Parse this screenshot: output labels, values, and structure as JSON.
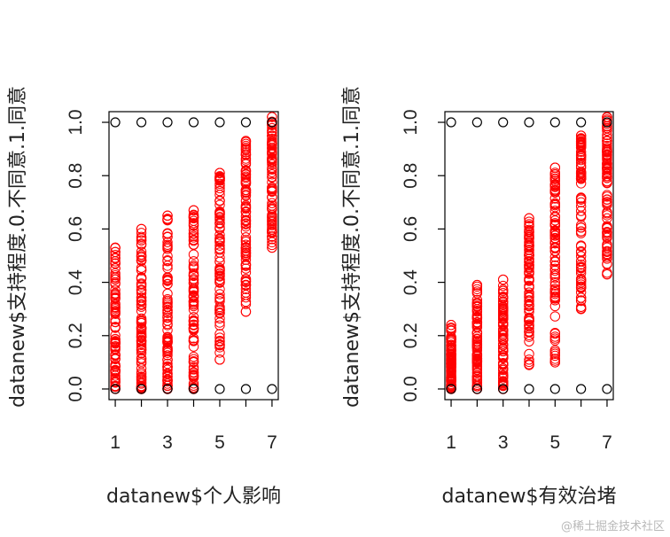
{
  "chart_data": [
    {
      "type": "scatter",
      "xlabel": "datanew$个人影响",
      "ylabel": "datanew$支持程度.0.不同意.1.同意",
      "xlim": [
        1,
        7
      ],
      "ylim": [
        0,
        1
      ],
      "x_ticks": [
        1,
        3,
        5,
        7
      ],
      "y_ticks": [
        0.0,
        0.2,
        0.4,
        0.6,
        0.8,
        1.0
      ],
      "y_tick_labels": [
        "0.0",
        "0.2",
        "0.4",
        "0.6",
        "0.8",
        "1.0"
      ],
      "grid": false,
      "colors": {
        "observed": "#000000",
        "fitted": "#ff0000"
      },
      "observed": {
        "x": [
          1,
          2,
          3,
          4,
          5,
          6,
          7,
          1,
          2,
          3,
          4,
          5,
          6,
          7
        ],
        "y": [
          1,
          1,
          1,
          1,
          1,
          1,
          1,
          0,
          0,
          0,
          0,
          0,
          0,
          0
        ]
      },
      "fitted_ranges": [
        {
          "x": 1,
          "min": 0.0,
          "max": 0.53
        },
        {
          "x": 2,
          "min": 0.0,
          "max": 0.6
        },
        {
          "x": 3,
          "min": 0.0,
          "max": 0.65
        },
        {
          "x": 4,
          "min": 0.0,
          "max": 0.67
        },
        {
          "x": 5,
          "min": 0.11,
          "max": 0.81
        },
        {
          "x": 6,
          "min": 0.29,
          "max": 0.93
        },
        {
          "x": 7,
          "min": 0.53,
          "max": 1.02
        }
      ]
    },
    {
      "type": "scatter",
      "xlabel": "datanew$有效治堵",
      "ylabel": "datanew$支持程度.0.不同意.1.同意",
      "xlim": [
        1,
        7
      ],
      "ylim": [
        0,
        1
      ],
      "x_ticks": [
        1,
        3,
        5,
        7
      ],
      "y_ticks": [
        0.0,
        0.2,
        0.4,
        0.6,
        0.8,
        1.0
      ],
      "y_tick_labels": [
        "0.0",
        "0.2",
        "0.4",
        "0.6",
        "0.8",
        "1.0"
      ],
      "grid": false,
      "colors": {
        "observed": "#000000",
        "fitted": "#ff0000"
      },
      "observed": {
        "x": [
          1,
          2,
          3,
          4,
          5,
          6,
          7,
          1,
          2,
          3,
          4,
          5,
          6,
          7
        ],
        "y": [
          1,
          1,
          1,
          1,
          1,
          1,
          1,
          0,
          0,
          0,
          0,
          0,
          0,
          0
        ]
      },
      "fitted_ranges": [
        {
          "x": 1,
          "min": 0.0,
          "max": 0.24
        },
        {
          "x": 2,
          "min": 0.0,
          "max": 0.39
        },
        {
          "x": 3,
          "min": 0.0,
          "max": 0.41
        },
        {
          "x": 4,
          "min": 0.09,
          "max": 0.64
        },
        {
          "x": 5,
          "min": 0.1,
          "max": 0.83
        },
        {
          "x": 6,
          "min": 0.3,
          "max": 0.95
        },
        {
          "x": 7,
          "min": 0.43,
          "max": 1.02
        }
      ]
    }
  ],
  "watermark": "@稀土掘金技术社区"
}
